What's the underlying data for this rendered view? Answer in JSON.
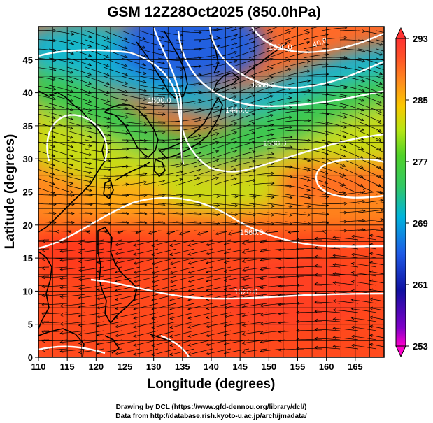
{
  "figure": {
    "title": "GSM 12Z28Oct2025 (850.0hPa)",
    "xlabel": "Longitude (degrees)",
    "ylabel": "Latitude  (degrees)",
    "credit_line1": "Drawing by DCL (https://www.gfd-dennou.org/library/dcl/)",
    "credit_line2": "Data from http://database.rish.kyoto-u.ac.jp/arch/jmadata/"
  },
  "map": {
    "lon_range": [
      110,
      170
    ],
    "lat_range": [
      0,
      50
    ],
    "x_ticks": [
      "110",
      "115",
      "120",
      "125",
      "130",
      "135",
      "140",
      "145",
      "150",
      "155",
      "160",
      "165"
    ],
    "y_ticks": [
      "0",
      "5",
      "10",
      "15",
      "20",
      "25",
      "30",
      "35",
      "40",
      "45"
    ],
    "grid": true,
    "shading_field": "temperature (K)",
    "contour_field": "geopotential height (m)",
    "contour_labels": [
      {
        "text": "1320.0",
        "lon": 152,
        "lat": 46.5
      },
      {
        "text": "1380.0",
        "lon": 149,
        "lat": 40.8
      },
      {
        "text": "1440.0",
        "lon": 144.5,
        "lat": 37.0
      },
      {
        "text": "1500.0",
        "lon": 131,
        "lat": 38.5
      },
      {
        "text": "1530.0",
        "lon": 151,
        "lat": 32.0
      },
      {
        "text": "1560.0",
        "lon": 147,
        "lat": 18.5
      },
      {
        "text": "1520.0",
        "lon": 146,
        "lat": 9.5
      }
    ],
    "partial_labels": [
      {
        "text": "40.0",
        "lon": 159,
        "lat": 47.2
      }
    ],
    "accent_colors": {
      "contour": "#ffffff",
      "coast": "#000000",
      "stream": "#000000"
    }
  },
  "colorbar": {
    "ticks": [
      "293",
      "285",
      "277",
      "269",
      "261",
      "253"
    ],
    "range": [
      253,
      293
    ],
    "colors": [
      "#ff00cc",
      "#8000c8",
      "#1010a0",
      "#1e5ae6",
      "#00b4dc",
      "#32c864",
      "#50d228",
      "#b4e614",
      "#fac800",
      "#ff8c1e",
      "#ff5028",
      "#ff3232"
    ]
  }
}
